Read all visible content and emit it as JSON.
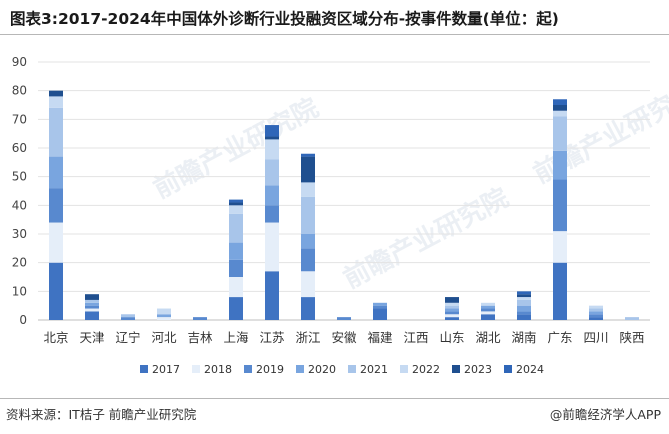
{
  "title": "图表3:2017-2024年中国体外诊断行业投融资区域分布-按事件数量(单位：起)",
  "source": "资料来源：IT桔子 前瞻产业研究院",
  "credit": "@前瞻经济学人APP",
  "watermark": "前瞻产业研究院",
  "colors": {
    "2017": "#3f73c2",
    "2018": "#e5eef9",
    "2019": "#5889cf",
    "2020": "#79a5df",
    "2021": "#a8c5ea",
    "2022": "#c6daf2",
    "2023": "#1f4f8f",
    "2024": "#2f66b8"
  },
  "chart_data": {
    "type": "bar",
    "stacked": true,
    "categories": [
      "北京",
      "天津",
      "辽宁",
      "河北",
      "吉林",
      "上海",
      "江苏",
      "浙江",
      "安徽",
      "福建",
      "江西",
      "山东",
      "湖北",
      "湖南",
      "广东",
      "四川",
      "陕西"
    ],
    "ylim": [
      0,
      90
    ],
    "yticks": [
      0,
      10,
      20,
      30,
      40,
      50,
      60,
      70,
      80,
      90
    ],
    "grid": true,
    "legend_position": "bottom",
    "series": [
      {
        "name": "2017",
        "values": [
          20,
          3,
          0,
          0,
          0,
          8,
          17,
          8,
          0,
          4,
          0,
          1,
          2,
          2,
          20,
          1,
          0
        ]
      },
      {
        "name": "2018",
        "values": [
          14,
          1,
          0,
          1,
          0,
          7,
          17,
          9,
          0,
          0,
          0,
          1,
          1,
          0,
          11,
          0,
          0
        ]
      },
      {
        "name": "2019",
        "values": [
          12,
          1,
          1,
          0,
          1,
          6,
          6,
          8,
          1,
          1,
          0,
          1,
          1,
          1,
          18,
          1,
          0
        ]
      },
      {
        "name": "2020",
        "values": [
          11,
          1,
          0,
          1,
          0,
          6,
          7,
          5,
          0,
          1,
          0,
          1,
          1,
          2,
          10,
          1,
          0
        ]
      },
      {
        "name": "2021",
        "values": [
          17,
          1,
          1,
          0,
          0,
          10,
          9,
          13,
          0,
          0,
          0,
          1,
          0,
          2,
          12,
          1,
          1
        ]
      },
      {
        "name": "2022",
        "values": [
          4,
          0,
          0,
          2,
          0,
          3,
          7,
          5,
          0,
          0,
          0,
          1,
          1,
          1,
          2,
          1,
          0
        ]
      },
      {
        "name": "2023",
        "values": [
          2,
          2,
          0,
          0,
          0,
          1,
          1,
          9,
          0,
          0,
          0,
          2,
          0,
          1,
          2,
          0,
          0
        ]
      },
      {
        "name": "2024",
        "values": [
          0,
          0,
          0,
          0,
          0,
          1,
          4,
          1,
          0,
          0,
          0,
          0,
          0,
          1,
          2,
          0,
          0
        ]
      }
    ]
  }
}
